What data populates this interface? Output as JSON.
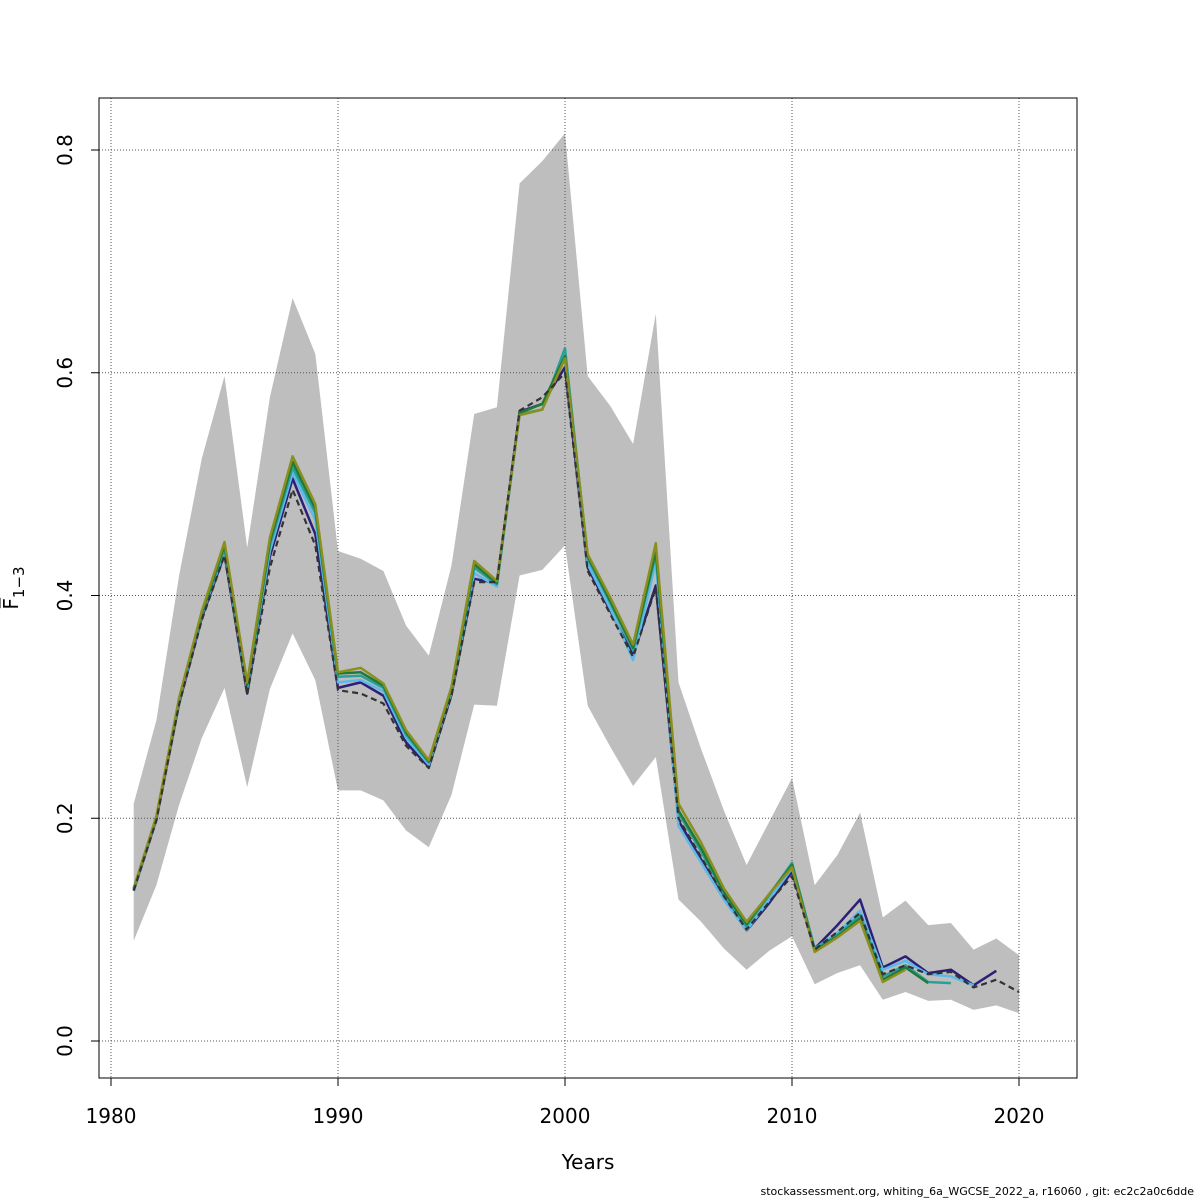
{
  "chart_data": {
    "type": "line",
    "xlabel": "Years",
    "ylabel": "F̅",
    "ylabel_subscript": "1−3",
    "xlim": [
      1980,
      2022
    ],
    "ylim": [
      0,
      0.84
    ],
    "x_ticks": [
      1980,
      1990,
      2000,
      2010,
      2020
    ],
    "y_ticks": [
      0.0,
      0.2,
      0.4,
      0.6,
      0.8
    ],
    "grid": true,
    "confidence_band": {
      "color": "#bebebe",
      "x": [
        1981,
        1982,
        1983,
        1984,
        1985,
        1986,
        1987,
        1988,
        1989,
        1990,
        1991,
        1992,
        1993,
        1994,
        1995,
        1996,
        1997,
        1998,
        1999,
        2000,
        2001,
        2002,
        2003,
        2004,
        2005,
        2006,
        2007,
        2008,
        2009,
        2010,
        2011,
        2012,
        2013,
        2014,
        2015,
        2016,
        2017,
        2018,
        2019,
        2020
      ],
      "upper": [
        0.213,
        0.288,
        0.418,
        0.523,
        0.597,
        0.443,
        0.578,
        0.667,
        0.617,
        0.44,
        0.433,
        0.422,
        0.373,
        0.346,
        0.427,
        0.563,
        0.569,
        0.77,
        0.79,
        0.815,
        0.597,
        0.57,
        0.536,
        0.653,
        0.322,
        0.262,
        0.207,
        0.158,
        0.197,
        0.236,
        0.14,
        0.167,
        0.205,
        0.111,
        0.126,
        0.104,
        0.106,
        0.082,
        0.092,
        0.077
      ],
      "lower": [
        0.09,
        0.14,
        0.212,
        0.272,
        0.317,
        0.228,
        0.316,
        0.366,
        0.324,
        0.225,
        0.225,
        0.216,
        0.189,
        0.174,
        0.221,
        0.302,
        0.301,
        0.418,
        0.423,
        0.445,
        0.301,
        0.264,
        0.229,
        0.255,
        0.127,
        0.107,
        0.083,
        0.064,
        0.081,
        0.094,
        0.051,
        0.061,
        0.068,
        0.037,
        0.044,
        0.036,
        0.037,
        0.028,
        0.032,
        0.025
      ]
    },
    "series": [
      {
        "color": "#333333",
        "dashed": true,
        "x": [
          1981,
          1982,
          1983,
          1984,
          1985,
          1986,
          1987,
          1988,
          1989,
          1990,
          1991,
          1992,
          1993,
          1994,
          1995,
          1996,
          1997,
          1998,
          1999,
          2000,
          2001,
          2002,
          2003,
          2004,
          2005,
          2006,
          2007,
          2008,
          2009,
          2010,
          2011,
          2012,
          2013,
          2014,
          2015,
          2016,
          2017,
          2018,
          2019,
          2020
        ],
        "values": [
          0.135,
          0.198,
          0.302,
          0.378,
          0.436,
          0.311,
          0.425,
          0.495,
          0.445,
          0.315,
          0.312,
          0.303,
          0.265,
          0.245,
          0.31,
          0.412,
          0.412,
          0.566,
          0.578,
          0.6,
          0.422,
          0.383,
          0.345,
          0.407,
          0.2,
          0.165,
          0.13,
          0.1,
          0.125,
          0.148,
          0.082,
          0.098,
          0.115,
          0.06,
          0.068,
          0.06,
          0.062,
          0.048,
          0.055,
          0.044
        ]
      },
      {
        "color": "#2b1f78",
        "dashed": false,
        "x": [
          1981,
          1982,
          1983,
          1984,
          1985,
          1986,
          1987,
          1988,
          1989,
          1990,
          1991,
          1992,
          1993,
          1994,
          1995,
          1996,
          1997,
          1998,
          1999,
          2000,
          2001,
          2002,
          2003,
          2004,
          2005,
          2006,
          2007,
          2008,
          2009,
          2010,
          2011,
          2012,
          2013,
          2014,
          2015,
          2016,
          2017,
          2018,
          2019
        ],
        "values": [
          0.135,
          0.199,
          0.303,
          0.38,
          0.437,
          0.312,
          0.435,
          0.505,
          0.455,
          0.317,
          0.322,
          0.31,
          0.268,
          0.246,
          0.311,
          0.415,
          0.411,
          0.565,
          0.572,
          0.605,
          0.425,
          0.386,
          0.346,
          0.409,
          0.198,
          0.163,
          0.128,
          0.099,
          0.124,
          0.152,
          0.083,
          0.104,
          0.127,
          0.066,
          0.076,
          0.061,
          0.064,
          0.05,
          0.063
        ]
      },
      {
        "color": "#5fb8e8",
        "dashed": false,
        "x": [
          1981,
          1982,
          1983,
          1984,
          1985,
          1986,
          1987,
          1988,
          1989,
          1990,
          1991,
          1992,
          1993,
          1994,
          1995,
          1996,
          1997,
          1998,
          1999,
          2000,
          2001,
          2002,
          2003,
          2004,
          2005,
          2006,
          2007,
          2008,
          2009,
          2010,
          2011,
          2012,
          2013,
          2014,
          2015,
          2016,
          2017,
          2018
        ],
        "values": [
          0.136,
          0.2,
          0.305,
          0.382,
          0.44,
          0.316,
          0.44,
          0.51,
          0.468,
          0.322,
          0.324,
          0.314,
          0.272,
          0.248,
          0.313,
          0.42,
          0.408,
          0.562,
          0.567,
          0.615,
          0.428,
          0.388,
          0.342,
          0.43,
          0.193,
          0.16,
          0.127,
          0.099,
          0.127,
          0.155,
          0.083,
          0.097,
          0.117,
          0.064,
          0.072,
          0.06,
          0.058,
          0.05
        ]
      },
      {
        "color": "#2aa198",
        "dashed": false,
        "x": [
          1981,
          1982,
          1983,
          1984,
          1985,
          1986,
          1987,
          1988,
          1989,
          1990,
          1991,
          1992,
          1993,
          1994,
          1995,
          1996,
          1997,
          1998,
          1999,
          2000,
          2001,
          2002,
          2003,
          2004,
          2005,
          2006,
          2007,
          2008,
          2009,
          2010,
          2011,
          2012,
          2013,
          2014,
          2015,
          2016,
          2017
        ],
        "values": [
          0.136,
          0.2,
          0.306,
          0.383,
          0.442,
          0.318,
          0.445,
          0.515,
          0.474,
          0.327,
          0.328,
          0.317,
          0.275,
          0.25,
          0.315,
          0.425,
          0.41,
          0.563,
          0.567,
          0.622,
          0.433,
          0.393,
          0.351,
          0.437,
          0.205,
          0.17,
          0.132,
          0.103,
          0.131,
          0.16,
          0.083,
          0.095,
          0.113,
          0.058,
          0.068,
          0.053,
          0.052
        ]
      },
      {
        "color": "#1f7a3a",
        "dashed": false,
        "x": [
          1981,
          1982,
          1983,
          1984,
          1985,
          1986,
          1987,
          1988,
          1989,
          1990,
          1991,
          1992,
          1993,
          1994,
          1995,
          1996,
          1997,
          1998,
          1999,
          2000,
          2001,
          2002,
          2003,
          2004,
          2005,
          2006,
          2007,
          2008,
          2009,
          2010,
          2011,
          2012,
          2013,
          2014,
          2015,
          2016
        ],
        "values": [
          0.137,
          0.201,
          0.307,
          0.384,
          0.445,
          0.32,
          0.448,
          0.52,
          0.478,
          0.33,
          0.331,
          0.319,
          0.277,
          0.251,
          0.316,
          0.428,
          0.411,
          0.564,
          0.572,
          0.615,
          0.435,
          0.395,
          0.353,
          0.44,
          0.207,
          0.173,
          0.134,
          0.105,
          0.132,
          0.158,
          0.081,
          0.094,
          0.11,
          0.055,
          0.066,
          0.052
        ]
      },
      {
        "color": "#8a8f1e",
        "dashed": false,
        "x": [
          1981,
          1982,
          1983,
          1984,
          1985,
          1986,
          1987,
          1988,
          1989,
          1990,
          1991,
          1992,
          1993,
          1994,
          1995,
          1996,
          1997,
          1998,
          1999,
          2000,
          2001,
          2002,
          2003,
          2004,
          2005,
          2006,
          2007,
          2008,
          2009,
          2010,
          2011,
          2012,
          2013,
          2014,
          2015
        ],
        "values": [
          0.137,
          0.202,
          0.308,
          0.386,
          0.448,
          0.322,
          0.452,
          0.525,
          0.482,
          0.331,
          0.335,
          0.321,
          0.279,
          0.252,
          0.318,
          0.431,
          0.413,
          0.562,
          0.567,
          0.613,
          0.437,
          0.398,
          0.356,
          0.447,
          0.213,
          0.178,
          0.137,
          0.107,
          0.132,
          0.156,
          0.08,
          0.093,
          0.108,
          0.053,
          0.064
        ]
      }
    ]
  },
  "footer": "stockassessment.org, whiting_6a_WGCSE_2022_a, r16060 , git: ec2c2a0c6dde"
}
